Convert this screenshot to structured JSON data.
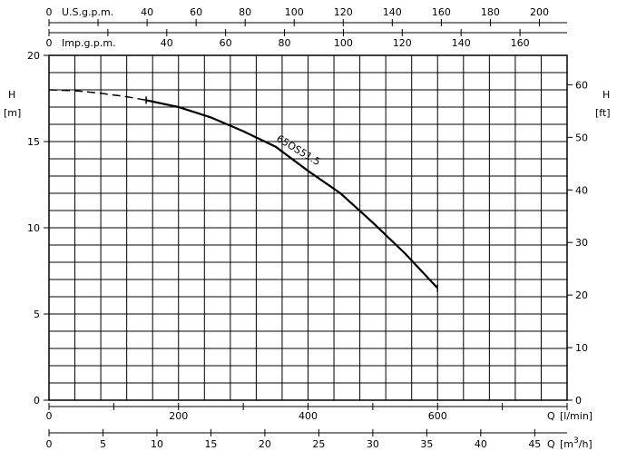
{
  "chart_data": {
    "type": "line",
    "title": "",
    "grid": true,
    "axes": {
      "left": {
        "label": "H",
        "unit": "[m]",
        "range": [
          0,
          20
        ],
        "ticks": [
          0,
          5,
          10,
          15,
          20
        ]
      },
      "right": {
        "label": "H",
        "unit": "[ft]",
        "range": [
          0,
          65.6
        ],
        "ticks": [
          0,
          10,
          20,
          30,
          40,
          50,
          60
        ]
      },
      "bottom_lmin": {
        "label": "Q",
        "unit": "[l/min]",
        "range": [
          0,
          800
        ],
        "ticks": [
          0,
          200,
          400,
          600
        ]
      },
      "bottom_m3h": {
        "label": "Q",
        "unit_prefix": "[m",
        "unit_sup": "3",
        "unit_suffix": "/h]",
        "range": [
          0,
          48
        ],
        "ticks": [
          0,
          5,
          10,
          15,
          20,
          25,
          30,
          35,
          40,
          45
        ]
      },
      "top_usgpm": {
        "label": "U.S.g.p.m.",
        "range": [
          0,
          211.3
        ],
        "ticks": [
          0,
          40,
          60,
          80,
          100,
          120,
          140,
          160,
          180,
          200
        ]
      },
      "top_impgpm": {
        "label": "Imp.g.p.m.",
        "range": [
          0,
          176
        ],
        "ticks": [
          0,
          40,
          60,
          80,
          100,
          120,
          140,
          160
        ]
      }
    },
    "series": [
      {
        "name": "65OS51.5",
        "x_unit": "l/min",
        "y_unit": "m",
        "x": [
          0,
          40,
          80,
          120,
          150,
          200,
          250,
          300,
          350,
          400,
          450,
          500,
          550,
          600
        ],
        "y": [
          18.0,
          17.95,
          17.8,
          17.6,
          17.4,
          17.0,
          16.4,
          15.6,
          14.7,
          13.3,
          12.0,
          10.3,
          8.5,
          6.5
        ],
        "dashed_until_x": 150,
        "label_position": "upper-right of curve"
      }
    ]
  }
}
